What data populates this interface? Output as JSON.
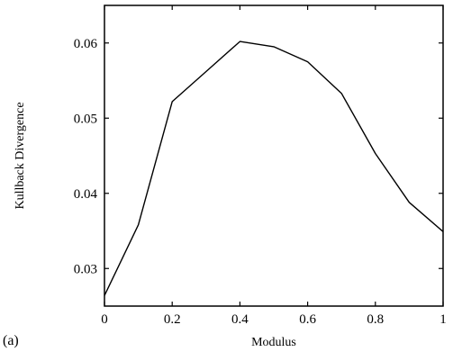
{
  "panel_label": "(a)",
  "chart_data": {
    "type": "line",
    "title": "",
    "xlabel": "Modulus",
    "ylabel": "Kullback Divergence",
    "xlim": [
      0,
      1
    ],
    "ylim": [
      0.025,
      0.065
    ],
    "grid": false,
    "x_ticks": [
      0,
      0.2,
      0.4,
      0.6,
      0.8,
      1
    ],
    "x_tick_labels": [
      "0",
      "0.2",
      "0.4",
      "0.6",
      "0.8",
      "1"
    ],
    "y_ticks": [
      0.03,
      0.04,
      0.05,
      0.06
    ],
    "y_tick_labels": [
      "0.03",
      "0.04",
      "0.05",
      "0.06"
    ],
    "series": [
      {
        "x": [
          0,
          0.1,
          0.2,
          0.3,
          0.4,
          0.5,
          0.6,
          0.7,
          0.8,
          0.9,
          1.0
        ],
        "y": [
          0.0264,
          0.0358,
          0.0522,
          0.0562,
          0.0602,
          0.0595,
          0.0575,
          0.0533,
          0.0453,
          0.0388,
          0.0349
        ]
      }
    ]
  }
}
